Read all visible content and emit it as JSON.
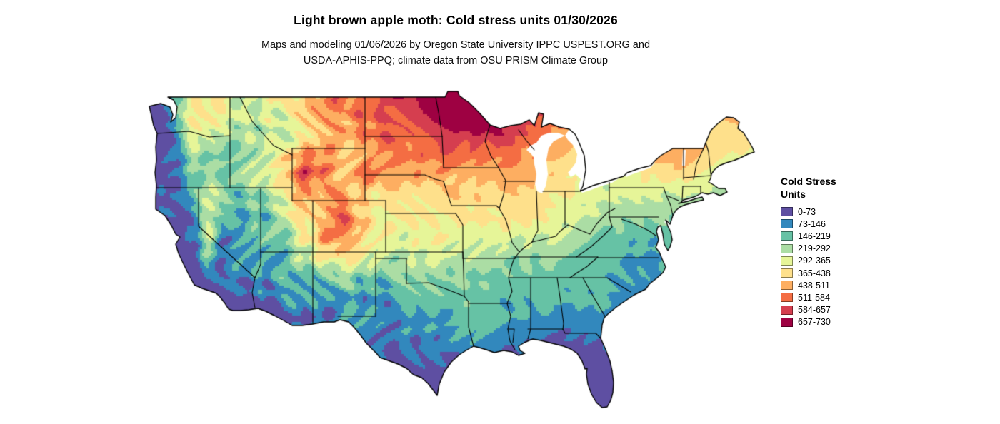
{
  "header": {
    "title": "Light brown apple moth: Cold stress units 01/30/2026",
    "subtitle_line1": "Maps and modeling 01/06/2026 by Oregon State University IPPC USPEST.ORG and",
    "subtitle_line2": "USDA-APHIS-PPQ; climate data from OSU PRISM Climate Group"
  },
  "legend": {
    "title_line1": "Cold Stress",
    "title_line2": "Units",
    "bins": [
      {
        "label": "0-73",
        "color": "#5e4fa2"
      },
      {
        "label": "73-146",
        "color": "#3288bd"
      },
      {
        "label": "146-219",
        "color": "#66c2a5"
      },
      {
        "label": "219-292",
        "color": "#abdda4"
      },
      {
        "label": "292-365",
        "color": "#e6f598"
      },
      {
        "label": "365-438",
        "color": "#fee08b"
      },
      {
        "label": "438-511",
        "color": "#fdae61"
      },
      {
        "label": "511-584",
        "color": "#f46d43"
      },
      {
        "label": "584-657",
        "color": "#d53e4f"
      },
      {
        "label": "657-730",
        "color": "#9e0142"
      }
    ],
    "bin_width": 73,
    "value_range": [
      0,
      730
    ]
  },
  "map": {
    "region": "Continental United States",
    "layer": "Cold stress units raster with state boundaries"
  }
}
